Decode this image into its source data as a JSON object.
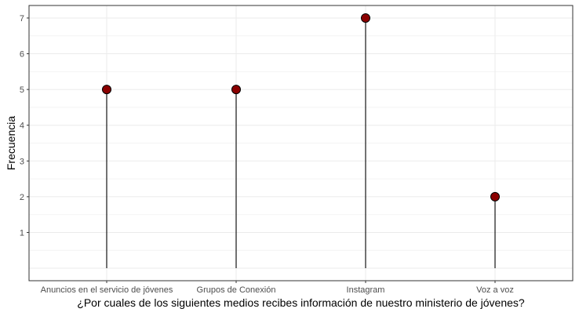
{
  "chart_data": {
    "type": "lollipop",
    "categories": [
      "Anuncios en el servicio de jóvenes",
      "Grupos de Conexión",
      "Instagram",
      "Voz a voz"
    ],
    "values": [
      5,
      5,
      7,
      2
    ],
    "xlabel": "¿Por cuales de los siguientes medios recibes información de nuestro ministerio de jóvenes?",
    "ylabel": "Frecuencia",
    "ylim": [
      -0.35,
      7.35
    ],
    "yticks": [
      1,
      2,
      3,
      4,
      5,
      6,
      7
    ],
    "grid": true,
    "colors": {
      "point": "#8b0000",
      "stem": "#000000",
      "grid_major": "#ebebeb",
      "grid_minor": "#f4f4f4",
      "panel_border": "#333333"
    }
  }
}
